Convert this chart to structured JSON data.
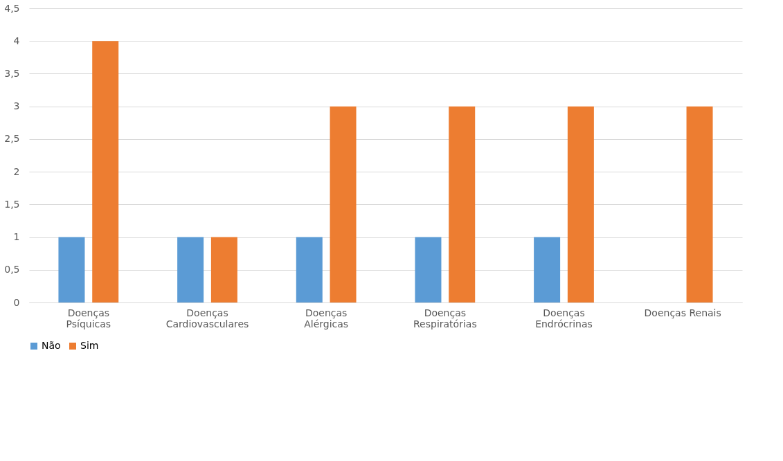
{
  "chart_data": {
    "type": "bar",
    "categories": [
      "Doenças Psíquicas",
      "Doenças Cardiovasculares",
      "Doenças Alérgicas",
      "Doenças Respiratórias",
      "Doenças Endrócrinas",
      "Doenças Renais"
    ],
    "series": [
      {
        "name": "Não",
        "color": "#5b9bd5",
        "values": [
          1,
          1,
          1,
          1,
          1,
          0
        ]
      },
      {
        "name": "Sim",
        "color": "#ed7d31",
        "values": [
          4,
          1,
          3,
          3,
          3,
          3
        ]
      }
    ],
    "ylim": [
      0,
      4.5
    ],
    "yticks": [
      0,
      {
        "value": 0.5,
        "label": "0,5"
      },
      1,
      {
        "value": 1.5,
        "label": "1,5"
      },
      2,
      {
        "value": 2.5,
        "label": "2,5"
      },
      3,
      {
        "value": 3.5,
        "label": "3,5"
      },
      4,
      {
        "value": 4.5,
        "label": "4,5"
      }
    ],
    "grid": "y",
    "legend": "bottom"
  }
}
